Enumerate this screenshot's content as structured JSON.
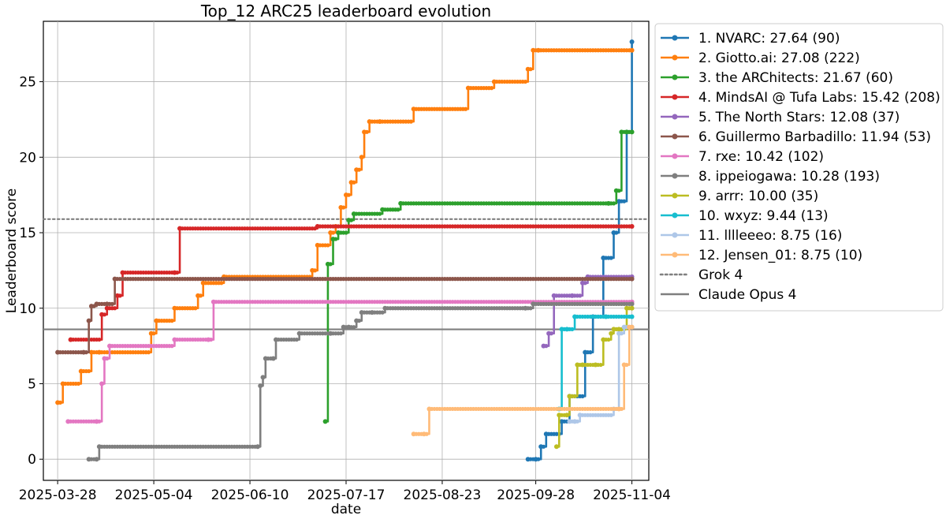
{
  "chart_data": {
    "type": "line",
    "title": "Top_12 ARC25 leaderboard evolution",
    "xlabel": "date",
    "ylabel": "Leaderboard score",
    "grid": true,
    "legend_placement": "outside-right-top",
    "x_unit": "days since 2025-03-28",
    "xlim": [
      -5.5,
      227.5
    ],
    "ylim": [
      -1.4,
      29.0
    ],
    "x_ticks": [
      {
        "value": 0,
        "label": "2025-03-28"
      },
      {
        "value": 37,
        "label": "2025-05-04"
      },
      {
        "value": 74,
        "label": "2025-06-10"
      },
      {
        "value": 111,
        "label": "2025-07-17"
      },
      {
        "value": 148,
        "label": "2025-08-23"
      },
      {
        "value": 184,
        "label": "2025-09-28"
      },
      {
        "value": 221,
        "label": "2025-11-04"
      }
    ],
    "y_ticks": [
      0,
      5,
      10,
      15,
      20,
      25
    ],
    "series": [
      {
        "name": "1. NVARC: 27.64 (90)",
        "color": "#1f77b4",
        "x": [
          181,
          184,
          186,
          188,
          194,
          197,
          203,
          206,
          210,
          214,
          216,
          219,
          221
        ],
        "y": [
          0.0,
          0.0,
          0.83,
          1.67,
          2.5,
          4.17,
          7.08,
          9.44,
          13.33,
          15.0,
          17.08,
          21.67,
          27.64
        ]
      },
      {
        "name": "2. Giotto.ai: 27.08 (222)",
        "color": "#ff7f0e",
        "x": [
          0,
          2,
          9,
          13,
          16,
          36,
          38,
          45,
          54,
          56,
          64,
          98,
          100,
          105,
          107,
          109,
          111,
          113,
          115,
          117,
          118,
          120,
          124,
          137,
          158,
          168,
          181,
          183,
          185,
          221
        ],
        "y": [
          3.75,
          5.0,
          5.83,
          7.08,
          7.08,
          8.33,
          9.17,
          10.0,
          10.83,
          11.67,
          12.08,
          12.5,
          14.17,
          15.0,
          15.42,
          16.67,
          17.5,
          18.33,
          19.17,
          20.0,
          21.67,
          22.36,
          22.36,
          23.19,
          24.58,
          25.0,
          25.83,
          27.08,
          27.08,
          27.08
        ]
      },
      {
        "name": "3. the ARChitects: 21.67 (60)",
        "color": "#2ca02c",
        "x": [
          103,
          104,
          106,
          108,
          112,
          114,
          125,
          132,
          212,
          215,
          217,
          219,
          221
        ],
        "y": [
          2.5,
          12.92,
          14.58,
          15.0,
          15.83,
          16.25,
          16.53,
          16.94,
          16.94,
          17.78,
          21.67,
          21.67,
          21.67
        ]
      },
      {
        "name": "4. MindsAI @ Tufa Labs: 15.42 (208)",
        "color": "#d62728",
        "x": [
          5,
          17,
          19,
          23,
          25,
          45,
          47,
          100,
          221
        ],
        "y": [
          7.92,
          9.58,
          10.0,
          10.83,
          12.36,
          12.36,
          15.28,
          15.42,
          15.42
        ]
      },
      {
        "name": "5. The North Stars: 12.08 (37)",
        "color": "#9467bd",
        "x": [
          187,
          189,
          191,
          198,
          202,
          204,
          221
        ],
        "y": [
          7.5,
          8.33,
          10.83,
          10.83,
          11.67,
          12.08,
          12.08
        ]
      },
      {
        "name": "6. Guillermo Barbadillo: 11.94 (53)",
        "color": "#8c564b",
        "x": [
          0,
          10,
          12,
          13,
          15,
          19,
          22,
          221
        ],
        "y": [
          7.08,
          7.08,
          9.17,
          10.14,
          10.28,
          10.28,
          11.94,
          11.94
        ]
      },
      {
        "name": "7. rxe: 10.42 (102)",
        "color": "#e377c2",
        "x": [
          4,
          15,
          17,
          18,
          20,
          45,
          58,
          60,
          221
        ],
        "y": [
          2.5,
          2.5,
          5.0,
          6.67,
          7.5,
          7.92,
          7.92,
          10.42,
          10.42
        ]
      },
      {
        "name": "8. ippeiogawa: 10.28 (193)",
        "color": "#7f7f7f",
        "x": [
          12,
          15,
          16,
          77,
          78,
          79,
          80,
          83,
          84,
          93,
          105,
          110,
          112,
          115,
          117,
          121,
          126,
          180,
          183,
          221
        ],
        "y": [
          0.0,
          0.0,
          0.83,
          0.83,
          4.86,
          5.42,
          6.67,
          6.67,
          7.92,
          8.33,
          8.33,
          8.75,
          8.75,
          9.17,
          9.72,
          9.72,
          10.0,
          10.0,
          10.28,
          10.28
        ]
      },
      {
        "name": "9. arrr: 10.00 (35)",
        "color": "#bcbd22",
        "x": [
          192,
          193,
          196,
          197,
          200,
          202,
          207,
          210,
          213,
          214,
          216,
          219,
          221
        ],
        "y": [
          0.83,
          2.92,
          2.92,
          4.17,
          6.25,
          6.25,
          6.25,
          7.92,
          8.33,
          8.61,
          8.61,
          10.0,
          10.0
        ]
      },
      {
        "name": "10. wxyz: 9.44 (13)",
        "color": "#17becf",
        "x": [
          193,
          194,
          196,
          199,
          211,
          221
        ],
        "y": [
          3.33,
          8.61,
          8.61,
          9.44,
          9.44,
          9.44
        ]
      },
      {
        "name": "11. lllleeeo: 8.75 (16)",
        "color": "#aec7e8",
        "x": [
          197,
          199,
          201,
          214,
          216,
          218,
          221
        ],
        "y": [
          2.5,
          2.5,
          2.92,
          3.33,
          8.33,
          8.75,
          8.75
        ]
      },
      {
        "name": "12. Jensen_01: 8.75 (10)",
        "color": "#ffbb78",
        "x": [
          137,
          141,
          143,
          216,
          218,
          220,
          221
        ],
        "y": [
          1.67,
          1.67,
          3.33,
          3.33,
          6.25,
          8.75,
          8.75
        ]
      }
    ],
    "reference_lines": [
      {
        "name": "Grok 4",
        "value": 15.9,
        "color": "#7f7f7f",
        "style": "dotted"
      },
      {
        "name": "Claude Opus 4",
        "value": 8.6,
        "color": "#7f7f7f",
        "style": "solid"
      }
    ]
  }
}
